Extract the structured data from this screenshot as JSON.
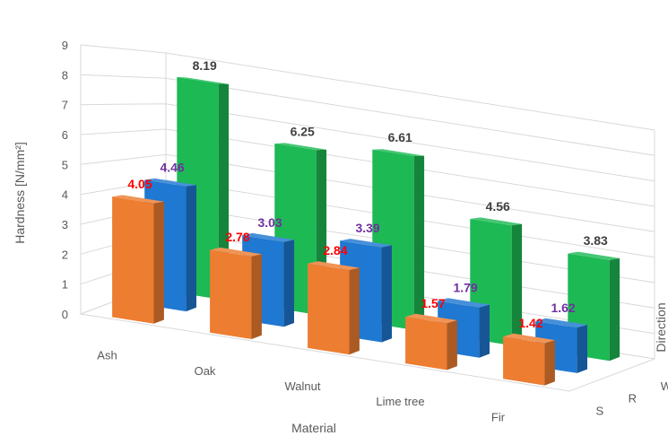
{
  "chart_data": {
    "type": "bar",
    "subtype": "3d-column",
    "title": "",
    "categories": [
      "Ash",
      "Oak",
      "Walnut",
      "Lime tree",
      "Fir"
    ],
    "depth_categories": [
      "S",
      "R",
      "W"
    ],
    "series": [
      {
        "name": "S",
        "values": [
          4.05,
          2.78,
          2.84,
          1.57,
          1.42
        ],
        "color": "#ED7D31",
        "label_color": "#FF0000"
      },
      {
        "name": "R",
        "values": [
          4.46,
          3.03,
          3.39,
          1.79,
          1.62
        ],
        "color": "#1F78D1",
        "label_color": "#7030A0"
      },
      {
        "name": "W",
        "values": [
          8.19,
          6.25,
          6.61,
          4.56,
          3.83
        ],
        "color": "#1DB954",
        "label_color": "#404040"
      }
    ],
    "value_labels": {
      "S": [
        "4.05",
        "2.78",
        "2.84",
        "1.57",
        "1.42"
      ],
      "R": [
        "4.46",
        "3.03",
        "3.39",
        "1.79",
        "1.62"
      ],
      "W": [
        "8.19",
        "6.25",
        "6.61",
        "4.56",
        "3.83"
      ]
    },
    "yticks": [
      "0",
      "1",
      "2",
      "3",
      "4",
      "5",
      "6",
      "7",
      "8",
      "9"
    ],
    "ylim": [
      0,
      9
    ],
    "xlabel": "Material",
    "ylabel": "Hardness [N/mm²]",
    "zlabel": "Direction",
    "grid": true,
    "legend": "none"
  }
}
